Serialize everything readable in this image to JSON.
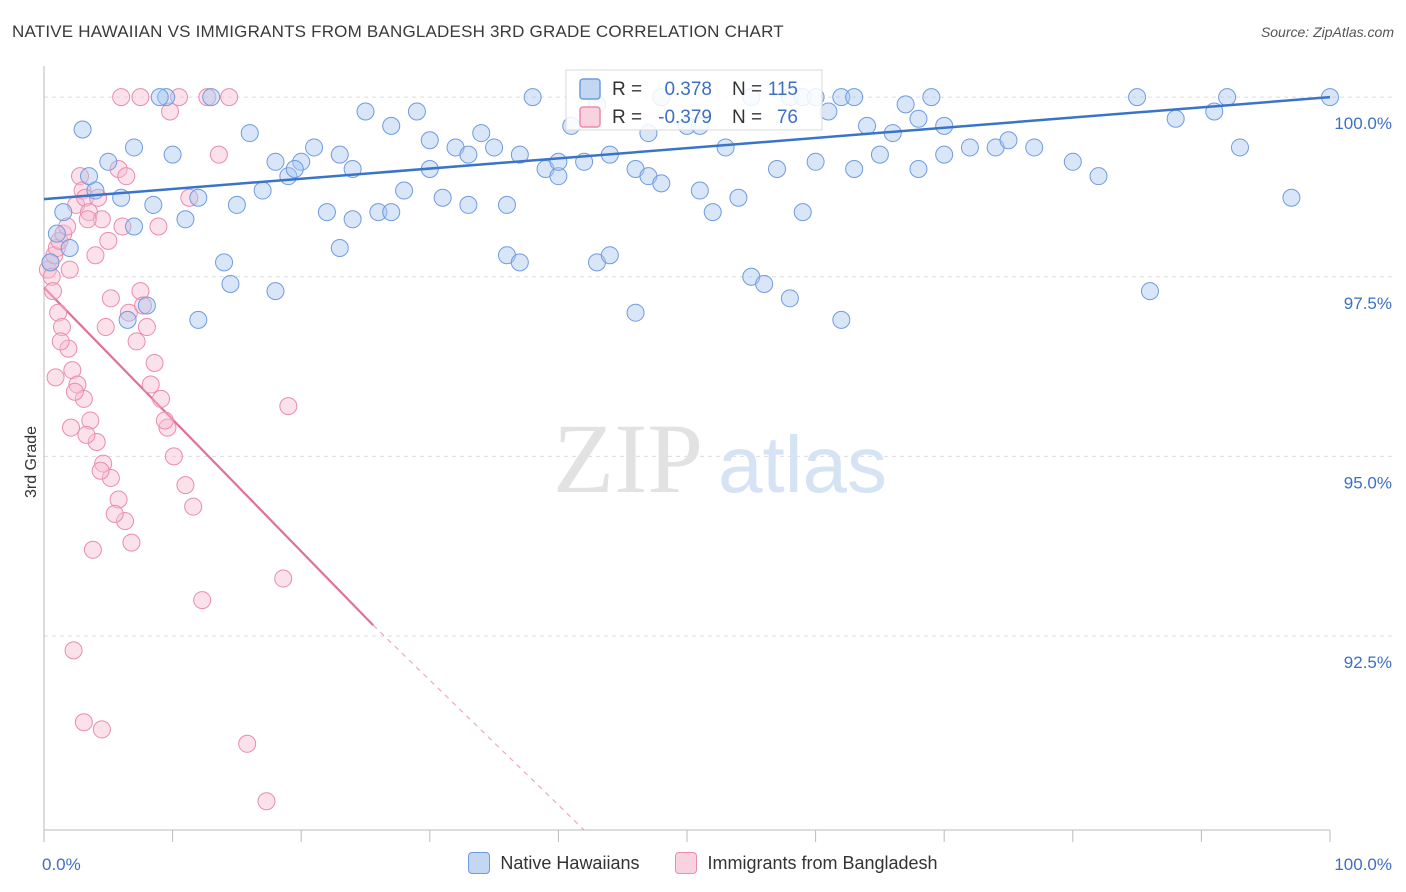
{
  "title": "NATIVE HAWAIIAN VS IMMIGRANTS FROM BANGLADESH 3RD GRADE CORRELATION CHART",
  "source": "Source: ZipAtlas.com",
  "watermark": {
    "zip": "ZIP",
    "atlas": "atlas"
  },
  "colors": {
    "blue_fill": "#a9c7ef",
    "blue_stroke": "#6f9be0",
    "blue_line": "#3a74c9",
    "pink_fill": "#f6bcd0",
    "pink_stroke": "#ea8caf",
    "pink_line": "#e07099",
    "tick_text": "#3d6fc4",
    "grid": "#dcdcdc"
  },
  "stats": [
    {
      "r_label": "R =",
      "r_value": " 0.378",
      "n_label": "N =",
      "n_value": "115",
      "series": "blue"
    },
    {
      "r_label": "R =",
      "r_value": "-0.379",
      "n_label": "N =",
      "n_value": " 76",
      "series": "pink"
    }
  ],
  "chart_data": {
    "type": "scatter",
    "title": "NATIVE HAWAIIAN VS IMMIGRANTS FROM BANGLADESH 3RD GRADE CORRELATION CHART",
    "xlabel": "",
    "ylabel": "3rd Grade",
    "xlim": [
      0,
      100
    ],
    "ylim": [
      89.8,
      100.35
    ],
    "x_tick_labels": [
      "0.0%",
      "100.0%"
    ],
    "y_ticks": [
      100.0,
      97.5,
      95.0,
      92.5
    ],
    "y_tick_labels": [
      "100.0%",
      "97.5%",
      "95.0%",
      "92.5%"
    ],
    "grid": true,
    "legend_position": "bottom",
    "series": [
      {
        "name": "Native Hawaiians",
        "color": "blue",
        "trend": {
          "x": [
            0,
            100
          ],
          "y": [
            98.58,
            100.0
          ]
        },
        "points": [
          [
            2,
            97.9
          ],
          [
            3,
            99.55
          ],
          [
            1.5,
            98.4
          ],
          [
            4,
            98.7
          ],
          [
            5,
            99.1
          ],
          [
            6,
            98.6
          ],
          [
            7,
            98.2
          ],
          [
            8,
            97.1
          ],
          [
            9.5,
            100
          ],
          [
            10,
            99.2
          ],
          [
            11,
            98.3
          ],
          [
            12,
            98.6
          ],
          [
            13,
            100
          ],
          [
            14,
            97.7
          ],
          [
            15,
            98.5
          ],
          [
            16,
            99.5
          ],
          [
            17,
            98.7
          ],
          [
            18,
            99.1
          ],
          [
            19,
            98.9
          ],
          [
            20,
            99.1
          ],
          [
            21,
            99.3
          ],
          [
            22,
            98.4
          ],
          [
            23,
            99.2
          ],
          [
            24,
            99.0
          ],
          [
            25,
            99.8
          ],
          [
            26,
            98.4
          ],
          [
            27,
            99.6
          ],
          [
            28,
            98.7
          ],
          [
            29,
            99.8
          ],
          [
            30,
            99.0
          ],
          [
            31,
            98.6
          ],
          [
            32,
            99.3
          ],
          [
            33,
            99.2
          ],
          [
            34,
            99.5
          ],
          [
            35,
            99.3
          ],
          [
            36,
            98.5
          ],
          [
            37,
            99.2
          ],
          [
            38,
            100
          ],
          [
            39,
            99.0
          ],
          [
            40,
            98.9
          ],
          [
            41,
            99.6
          ],
          [
            42,
            99.1
          ],
          [
            43,
            97.7
          ],
          [
            44,
            97.8
          ],
          [
            46,
            99.0
          ],
          [
            47,
            99.5
          ],
          [
            48,
            100
          ],
          [
            50,
            99.6
          ],
          [
            51,
            98.7
          ],
          [
            53,
            99.3
          ],
          [
            54,
            98.6
          ],
          [
            55,
            100
          ],
          [
            57,
            99.0
          ],
          [
            58,
            100
          ],
          [
            59,
            100
          ],
          [
            60,
            100
          ],
          [
            61,
            99.8
          ],
          [
            62,
            100
          ],
          [
            63,
            100
          ],
          [
            64,
            99.6
          ],
          [
            66,
            99.5
          ],
          [
            67,
            99.9
          ],
          [
            68,
            99.7
          ],
          [
            69,
            100
          ],
          [
            70,
            99.6
          ],
          [
            72,
            99.3
          ],
          [
            74,
            99.3
          ],
          [
            75,
            99.4
          ],
          [
            77,
            99.3
          ],
          [
            80,
            99.1
          ],
          [
            82,
            98.9
          ],
          [
            85,
            100
          ],
          [
            88,
            99.7
          ],
          [
            92,
            100
          ],
          [
            93,
            99.3
          ],
          [
            97,
            98.6
          ],
          [
            100,
            100
          ],
          [
            0.5,
            97.7
          ],
          [
            1,
            98.1
          ],
          [
            3.5,
            98.9
          ],
          [
            6.5,
            96.9
          ],
          [
            9,
            100
          ],
          [
            12,
            96.9
          ],
          [
            14.5,
            97.4
          ],
          [
            18,
            97.3
          ],
          [
            23,
            97.9
          ],
          [
            36,
            97.8
          ],
          [
            37,
            97.7
          ],
          [
            46,
            97.0
          ],
          [
            55,
            97.5
          ],
          [
            56,
            97.4
          ],
          [
            62,
            96.9
          ],
          [
            65,
            99.2
          ],
          [
            70,
            99.2
          ],
          [
            86,
            97.3
          ],
          [
            91,
            99.8
          ],
          [
            7,
            99.3
          ],
          [
            8.5,
            98.5
          ],
          [
            24,
            98.3
          ],
          [
            30,
            99.4
          ],
          [
            47,
            98.9
          ],
          [
            51,
            99.6
          ],
          [
            52,
            98.4
          ],
          [
            58,
            97.2
          ],
          [
            63,
            99.0
          ],
          [
            44,
            99.2
          ],
          [
            60,
            99.1
          ],
          [
            19.5,
            99.0
          ],
          [
            27,
            98.4
          ],
          [
            33,
            98.5
          ],
          [
            40,
            99.1
          ],
          [
            43,
            99.9
          ],
          [
            48,
            98.8
          ],
          [
            59,
            98.4
          ],
          [
            68,
            99.0
          ]
        ]
      },
      {
        "name": "Immigrants from Bangladesh",
        "color": "pink",
        "trend": {
          "x": [
            0,
            25.6
          ],
          "y": [
            97.35,
            92.65
          ]
        },
        "trend_dashed": {
          "x": [
            25.6,
            42
          ],
          "y": [
            92.65,
            89.8
          ]
        },
        "points": [
          [
            0.3,
            97.6
          ],
          [
            0.5,
            97.7
          ],
          [
            0.6,
            97.5
          ],
          [
            0.8,
            97.8
          ],
          [
            1,
            97.9
          ],
          [
            1.2,
            98.0
          ],
          [
            1.5,
            98.1
          ],
          [
            1.8,
            98.2
          ],
          [
            2,
            97.6
          ],
          [
            2.5,
            98.5
          ],
          [
            2.8,
            98.9
          ],
          [
            3,
            98.7
          ],
          [
            3.2,
            98.6
          ],
          [
            3.5,
            98.4
          ],
          [
            4,
            97.8
          ],
          [
            4.5,
            98.3
          ],
          [
            5,
            98.0
          ],
          [
            0.7,
            97.3
          ],
          [
            1.1,
            97.0
          ],
          [
            1.4,
            96.8
          ],
          [
            1.9,
            96.5
          ],
          [
            2.2,
            96.2
          ],
          [
            2.6,
            96.0
          ],
          [
            3.1,
            95.8
          ],
          [
            3.6,
            95.5
          ],
          [
            4.1,
            95.2
          ],
          [
            4.6,
            94.9
          ],
          [
            5.2,
            94.7
          ],
          [
            5.8,
            94.4
          ],
          [
            6.3,
            94.1
          ],
          [
            6.8,
            93.8
          ],
          [
            7.5,
            97.3
          ],
          [
            8,
            96.8
          ],
          [
            8.6,
            96.3
          ],
          [
            9.1,
            95.8
          ],
          [
            9.6,
            95.4
          ],
          [
            10.1,
            95.0
          ],
          [
            11,
            94.6
          ],
          [
            11.6,
            94.3
          ],
          [
            12.3,
            93.0
          ],
          [
            1.3,
            96.6
          ],
          [
            2.4,
            95.9
          ],
          [
            3.3,
            95.3
          ],
          [
            4.4,
            94.8
          ],
          [
            5.5,
            94.2
          ],
          [
            0.9,
            96.1
          ],
          [
            2.1,
            95.4
          ],
          [
            3.8,
            93.7
          ],
          [
            6.6,
            97.0
          ],
          [
            7.2,
            96.6
          ],
          [
            8.3,
            96.0
          ],
          [
            9.4,
            95.5
          ],
          [
            2.3,
            92.3
          ],
          [
            3.1,
            91.3
          ],
          [
            4.5,
            91.2
          ],
          [
            15.8,
            91.0
          ],
          [
            17.3,
            90.2
          ],
          [
            6,
            100
          ],
          [
            7.5,
            100
          ],
          [
            10.5,
            100
          ],
          [
            9.8,
            99.8
          ],
          [
            5.8,
            99.0
          ],
          [
            4.2,
            98.6
          ],
          [
            3.4,
            98.3
          ],
          [
            6.4,
            98.9
          ],
          [
            18.6,
            93.3
          ],
          [
            19,
            95.7
          ],
          [
            11.3,
            98.6
          ],
          [
            7.7,
            97.1
          ],
          [
            8.9,
            98.2
          ],
          [
            12.7,
            100
          ],
          [
            13.6,
            99.2
          ],
          [
            14.4,
            100
          ],
          [
            5.2,
            97.2
          ],
          [
            4.8,
            96.8
          ],
          [
            6.1,
            98.2
          ]
        ]
      }
    ]
  },
  "legend": {
    "items": [
      {
        "label": "Native Hawaiians"
      },
      {
        "label": "Immigrants from Bangladesh"
      }
    ]
  }
}
